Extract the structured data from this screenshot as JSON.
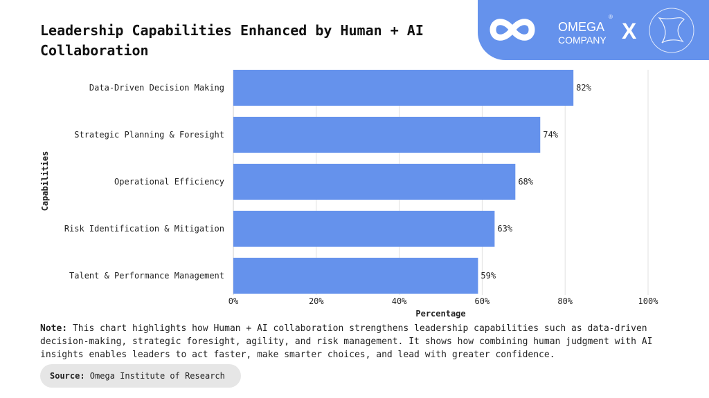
{
  "title": "Leadership Capabilities Enhanced by Human + AI Collaboration",
  "logo": {
    "brand_line1": "OMEGA",
    "brand_line2": "COMPANY",
    "separator": "X",
    "registered": "®"
  },
  "colors": {
    "bar": "#6592ec",
    "grid": "#e0e0e0",
    "logo_bg": "#6592ec"
  },
  "chart_data": {
    "type": "bar",
    "orientation": "horizontal",
    "title": "Leadership Capabilities Enhanced by Human + AI Collaboration",
    "categories": [
      "Data-Driven Decision Making",
      "Strategic Planning & Foresight",
      "Operational Efficiency",
      "Risk Identification & Mitigation",
      "Talent & Performance Management"
    ],
    "values": [
      82,
      74,
      68,
      63,
      59
    ],
    "data_labels": [
      "82%",
      "74%",
      "68%",
      "63%",
      "59%"
    ],
    "xlabel": "Percentage",
    "ylabel": "Capabilities",
    "xlim": [
      0,
      100
    ],
    "xticks": [
      "0%",
      "20%",
      "40%",
      "60%",
      "80%",
      "100%"
    ],
    "grid": "vertical"
  },
  "note": {
    "label": "Note:",
    "text": " This chart highlights how Human + AI collaboration strengthens leadership capabilities such as data-driven decision-making, strategic foresight, agility, and risk management. It shows how combining human judgment with AI insights enables leaders to act faster, make smarter choices, and lead with greater confidence."
  },
  "source": {
    "label": "Source:",
    "text": " Omega Institute of Research"
  }
}
